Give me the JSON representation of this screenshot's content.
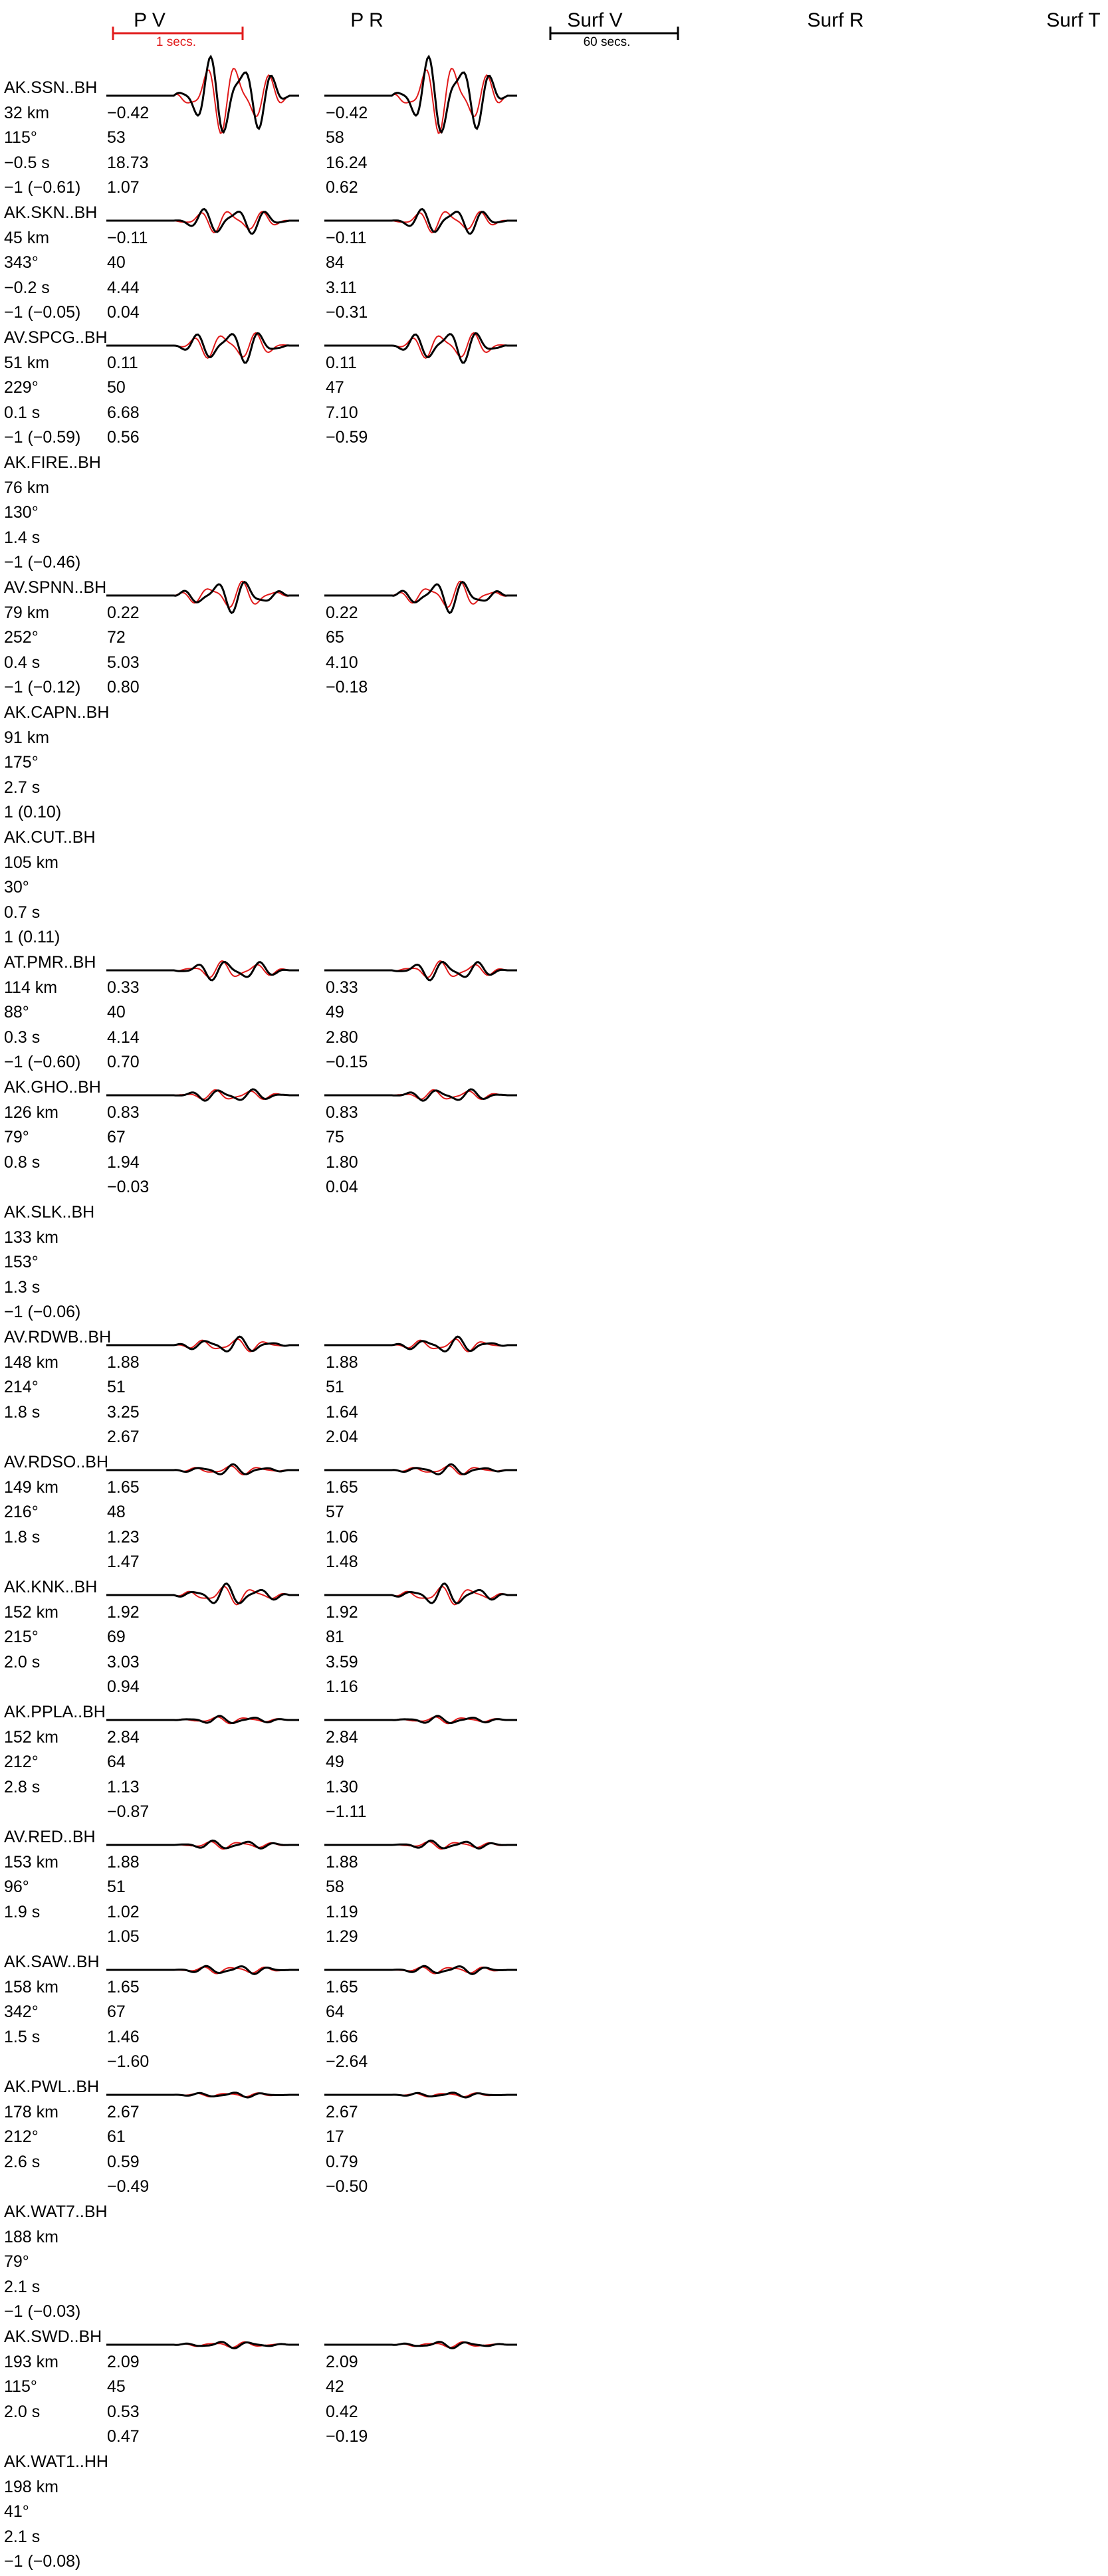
{
  "columns": {
    "pv": "P V",
    "pr": "P R",
    "surf_v": "Surf V",
    "surf_r": "Surf R",
    "surf_t": "Surf T"
  },
  "scales": {
    "p_scale": "1 secs.",
    "surf_scale": "60 secs."
  },
  "colors": {
    "observed": "#000000",
    "synthetic": "#e11b1b"
  },
  "stations": [
    {
      "name": "AK.SSN..BH",
      "dist": "32 km",
      "az": "115°",
      "shift": "−0.5 s",
      "weight": "−1 (−0.61)",
      "has_wave": true,
      "amp": 3.2,
      "pv": [
        "−0.42",
        "53",
        "18.73",
        "1.07"
      ],
      "pr": [
        "−0.42",
        "58",
        "16.24",
        "0.62"
      ]
    },
    {
      "name": "AK.SKN..BH",
      "dist": "45 km",
      "az": "343°",
      "shift": "−0.2 s",
      "weight": "−1 (−0.05)",
      "has_wave": true,
      "amp": 1.1,
      "pv": [
        "−0.11",
        "40",
        "4.44",
        "0.04"
      ],
      "pr": [
        "−0.11",
        "84",
        "3.11",
        "−0.31"
      ]
    },
    {
      "name": "AV.SPCG..BH",
      "dist": "51 km",
      "az": "229°",
      "shift": "0.1 s",
      "weight": "−1 (−0.59)",
      "has_wave": true,
      "amp": 1.3,
      "pv": [
        "0.11",
        "50",
        "6.68",
        "0.56"
      ],
      "pr": [
        "0.11",
        "47",
        "7.10",
        "−0.59"
      ]
    },
    {
      "name": "AK.FIRE..BH",
      "dist": "76 km",
      "az": "130°",
      "shift": "1.4 s",
      "weight": "−1 (−0.46)",
      "has_wave": false,
      "amp": 0,
      "pv": [],
      "pr": []
    },
    {
      "name": "AV.SPNN..BH",
      "dist": "79 km",
      "az": "252°",
      "shift": "0.4 s",
      "weight": "−1 (−0.12)",
      "has_wave": true,
      "amp": 1.2,
      "pv": [
        "0.22",
        "72",
        "5.03",
        "0.80"
      ],
      "pr": [
        "0.22",
        "65",
        "4.10",
        "−0.18"
      ]
    },
    {
      "name": "AK.CAPN..BH",
      "dist": "91 km",
      "az": "175°",
      "shift": "2.7 s",
      "weight": "1 (0.10)",
      "has_wave": false,
      "amp": 0,
      "pv": [],
      "pr": []
    },
    {
      "name": "AK.CUT..BH",
      "dist": "105 km",
      "az": "30°",
      "shift": "0.7 s",
      "weight": "1 (0.11)",
      "has_wave": false,
      "amp": 0,
      "pv": [],
      "pr": []
    },
    {
      "name": "AT.PMR..BH",
      "dist": "114 km",
      "az": "88°",
      "shift": "0.3 s",
      "weight": "−1 (−0.60)",
      "has_wave": true,
      "amp": 0.8,
      "pv": [
        "0.33",
        "40",
        "4.14",
        "0.70"
      ],
      "pr": [
        "0.33",
        "49",
        "2.80",
        "−0.15"
      ]
    },
    {
      "name": "AK.GHO..BH",
      "dist": "126 km",
      "az": "79°",
      "shift": "0.8 s",
      "weight": "",
      "has_wave": true,
      "amp": 0.5,
      "pv": [
        "0.83",
        "67",
        "1.94",
        "−0.03"
      ],
      "pr": [
        "0.83",
        "75",
        "1.80",
        "0.04"
      ]
    },
    {
      "name": "AK.SLK..BH",
      "dist": "133 km",
      "az": "153°",
      "shift": "1.3 s",
      "weight": "−1 (−0.06)",
      "has_wave": false,
      "amp": 0,
      "pv": [],
      "pr": []
    },
    {
      "name": "AV.RDWB..BH",
      "dist": "148 km",
      "az": "214°",
      "shift": "1.8 s",
      "weight": "",
      "has_wave": true,
      "amp": 0.6,
      "pv": [
        "1.88",
        "51",
        "3.25",
        "2.67"
      ],
      "pr": [
        "1.88",
        "51",
        "1.64",
        "2.04"
      ]
    },
    {
      "name": "AV.RDSO..BH",
      "dist": "149 km",
      "az": "216°",
      "shift": "1.8 s",
      "weight": "",
      "has_wave": true,
      "amp": 0.4,
      "pv": [
        "1.65",
        "48",
        "1.23",
        "1.47"
      ],
      "pr": [
        "1.65",
        "57",
        "1.06",
        "1.48"
      ]
    },
    {
      "name": "AK.KNK..BH",
      "dist": "152 km",
      "az": "215°",
      "shift": "2.0 s",
      "weight": "",
      "has_wave": true,
      "amp": 0.8,
      "pv": [
        "1.92",
        "69",
        "3.03",
        "0.94"
      ],
      "pr": [
        "1.92",
        "81",
        "3.59",
        "1.16"
      ]
    },
    {
      "name": "AK.PPLA..BH",
      "dist": "152 km",
      "az": "212°",
      "shift": "2.8 s",
      "weight": "",
      "has_wave": true,
      "amp": 0.3,
      "pv": [
        "2.84",
        "64",
        "1.13",
        "−0.87"
      ],
      "pr": [
        "2.84",
        "49",
        "1.30",
        "−1.11"
      ]
    },
    {
      "name": "AV.RED..BH",
      "dist": "153 km",
      "az": "96°",
      "shift": "1.9 s",
      "weight": "",
      "has_wave": true,
      "amp": 0.35,
      "pv": [
        "1.88",
        "51",
        "1.02",
        "1.05"
      ],
      "pr": [
        "1.88",
        "58",
        "1.19",
        "1.29"
      ]
    },
    {
      "name": "AK.SAW..BH",
      "dist": "158 km",
      "az": "342°",
      "shift": "1.5 s",
      "weight": "",
      "has_wave": true,
      "amp": 0.35,
      "pv": [
        "1.65",
        "67",
        "1.46",
        "−1.60"
      ],
      "pr": [
        "1.65",
        "64",
        "1.66",
        "−2.64"
      ]
    },
    {
      "name": "AK.PWL..BH",
      "dist": "178 km",
      "az": "212°",
      "shift": "2.6 s",
      "weight": "",
      "has_wave": true,
      "amp": 0.2,
      "pv": [
        "2.67",
        "61",
        "0.59",
        "−0.49"
      ],
      "pr": [
        "2.67",
        "17",
        "0.79",
        "−0.50"
      ]
    },
    {
      "name": "AK.WAT7..BH",
      "dist": "188 km",
      "az": "79°",
      "shift": "2.1 s",
      "weight": "−1 (−0.03)",
      "has_wave": false,
      "amp": 0,
      "pv": [],
      "pr": []
    },
    {
      "name": "AK.SWD..BH",
      "dist": "193 km",
      "az": "115°",
      "shift": "2.0 s",
      "weight": "",
      "has_wave": true,
      "amp": 0.25,
      "pv": [
        "2.09",
        "45",
        "0.53",
        "0.47"
      ],
      "pr": [
        "2.09",
        "42",
        "0.42",
        "−0.19"
      ]
    },
    {
      "name": "AK.WAT1..HH",
      "dist": "198 km",
      "az": "41°",
      "shift": "2.1 s",
      "weight": "−1 (−0.08)",
      "has_wave": false,
      "amp": 0,
      "pv": [],
      "pr": []
    }
  ]
}
